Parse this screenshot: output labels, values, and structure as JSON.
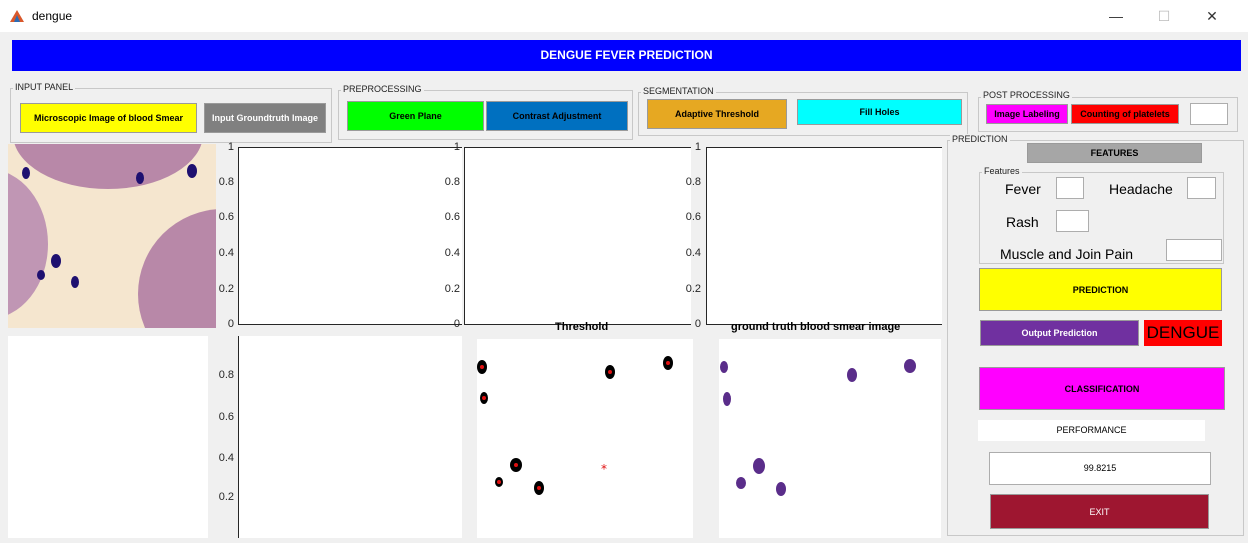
{
  "window": {
    "title": "dengue",
    "minimize": "—",
    "maximize": "☐",
    "close": "✕"
  },
  "banner": "DENGUE FEVER PREDICTION",
  "input_panel": {
    "label": "INPUT PANEL",
    "microscopic_button": "Microscopic Image of blood Smear",
    "groundtruth_button": "Input Groundtruth Image"
  },
  "preprocessing": {
    "label": "PREPROCESSING",
    "green_plane": "Green Plane",
    "contrast": "Contrast Adjustment"
  },
  "segmentation": {
    "label": "SEGMENTATION",
    "adaptive": "Adaptive Threshold",
    "fill_holes": "Fill Holes"
  },
  "post_processing": {
    "label": "POST PROCESSING",
    "labeling": "Image Labeling",
    "counting": "Counting of platelets",
    "count_value": ""
  },
  "prediction": {
    "label": "PREDICTION",
    "features_button": "FEATURES",
    "features_group": "Features",
    "fever": "Fever",
    "headache": "Headache",
    "rash": "Rash",
    "muscle": "Muscle and Join Pain",
    "predict_button": "PREDICTION",
    "output_button": "Output Prediction",
    "output_value": "DENGUE",
    "classification": "CLASSIFICATION",
    "performance_label": "PERFORMANCE",
    "performance_value": "99.8215",
    "exit": "EXIT"
  },
  "axes": {
    "ticks_y": [
      "1",
      "0.8",
      "0.6",
      "0.4",
      "0.2",
      "0"
    ],
    "ticks_y_bottom": [
      "0.8",
      "0.6",
      "0.4",
      "0.2"
    ],
    "threshold_title": "Threshold",
    "groundtruth_title": "ground truth blood smear image"
  },
  "colors": {
    "banner": "#0000ff",
    "yellow": "#ffff00",
    "gray": "#808080",
    "green": "#00ff00",
    "blue": "#0070c0",
    "orange": "#e6a822",
    "cyan": "#00ffff",
    "magenta": "#ff00ff",
    "red": "#ff0000",
    "purple": "#7030a0",
    "exit": "#9e1630",
    "features": "#a6a6a6"
  }
}
